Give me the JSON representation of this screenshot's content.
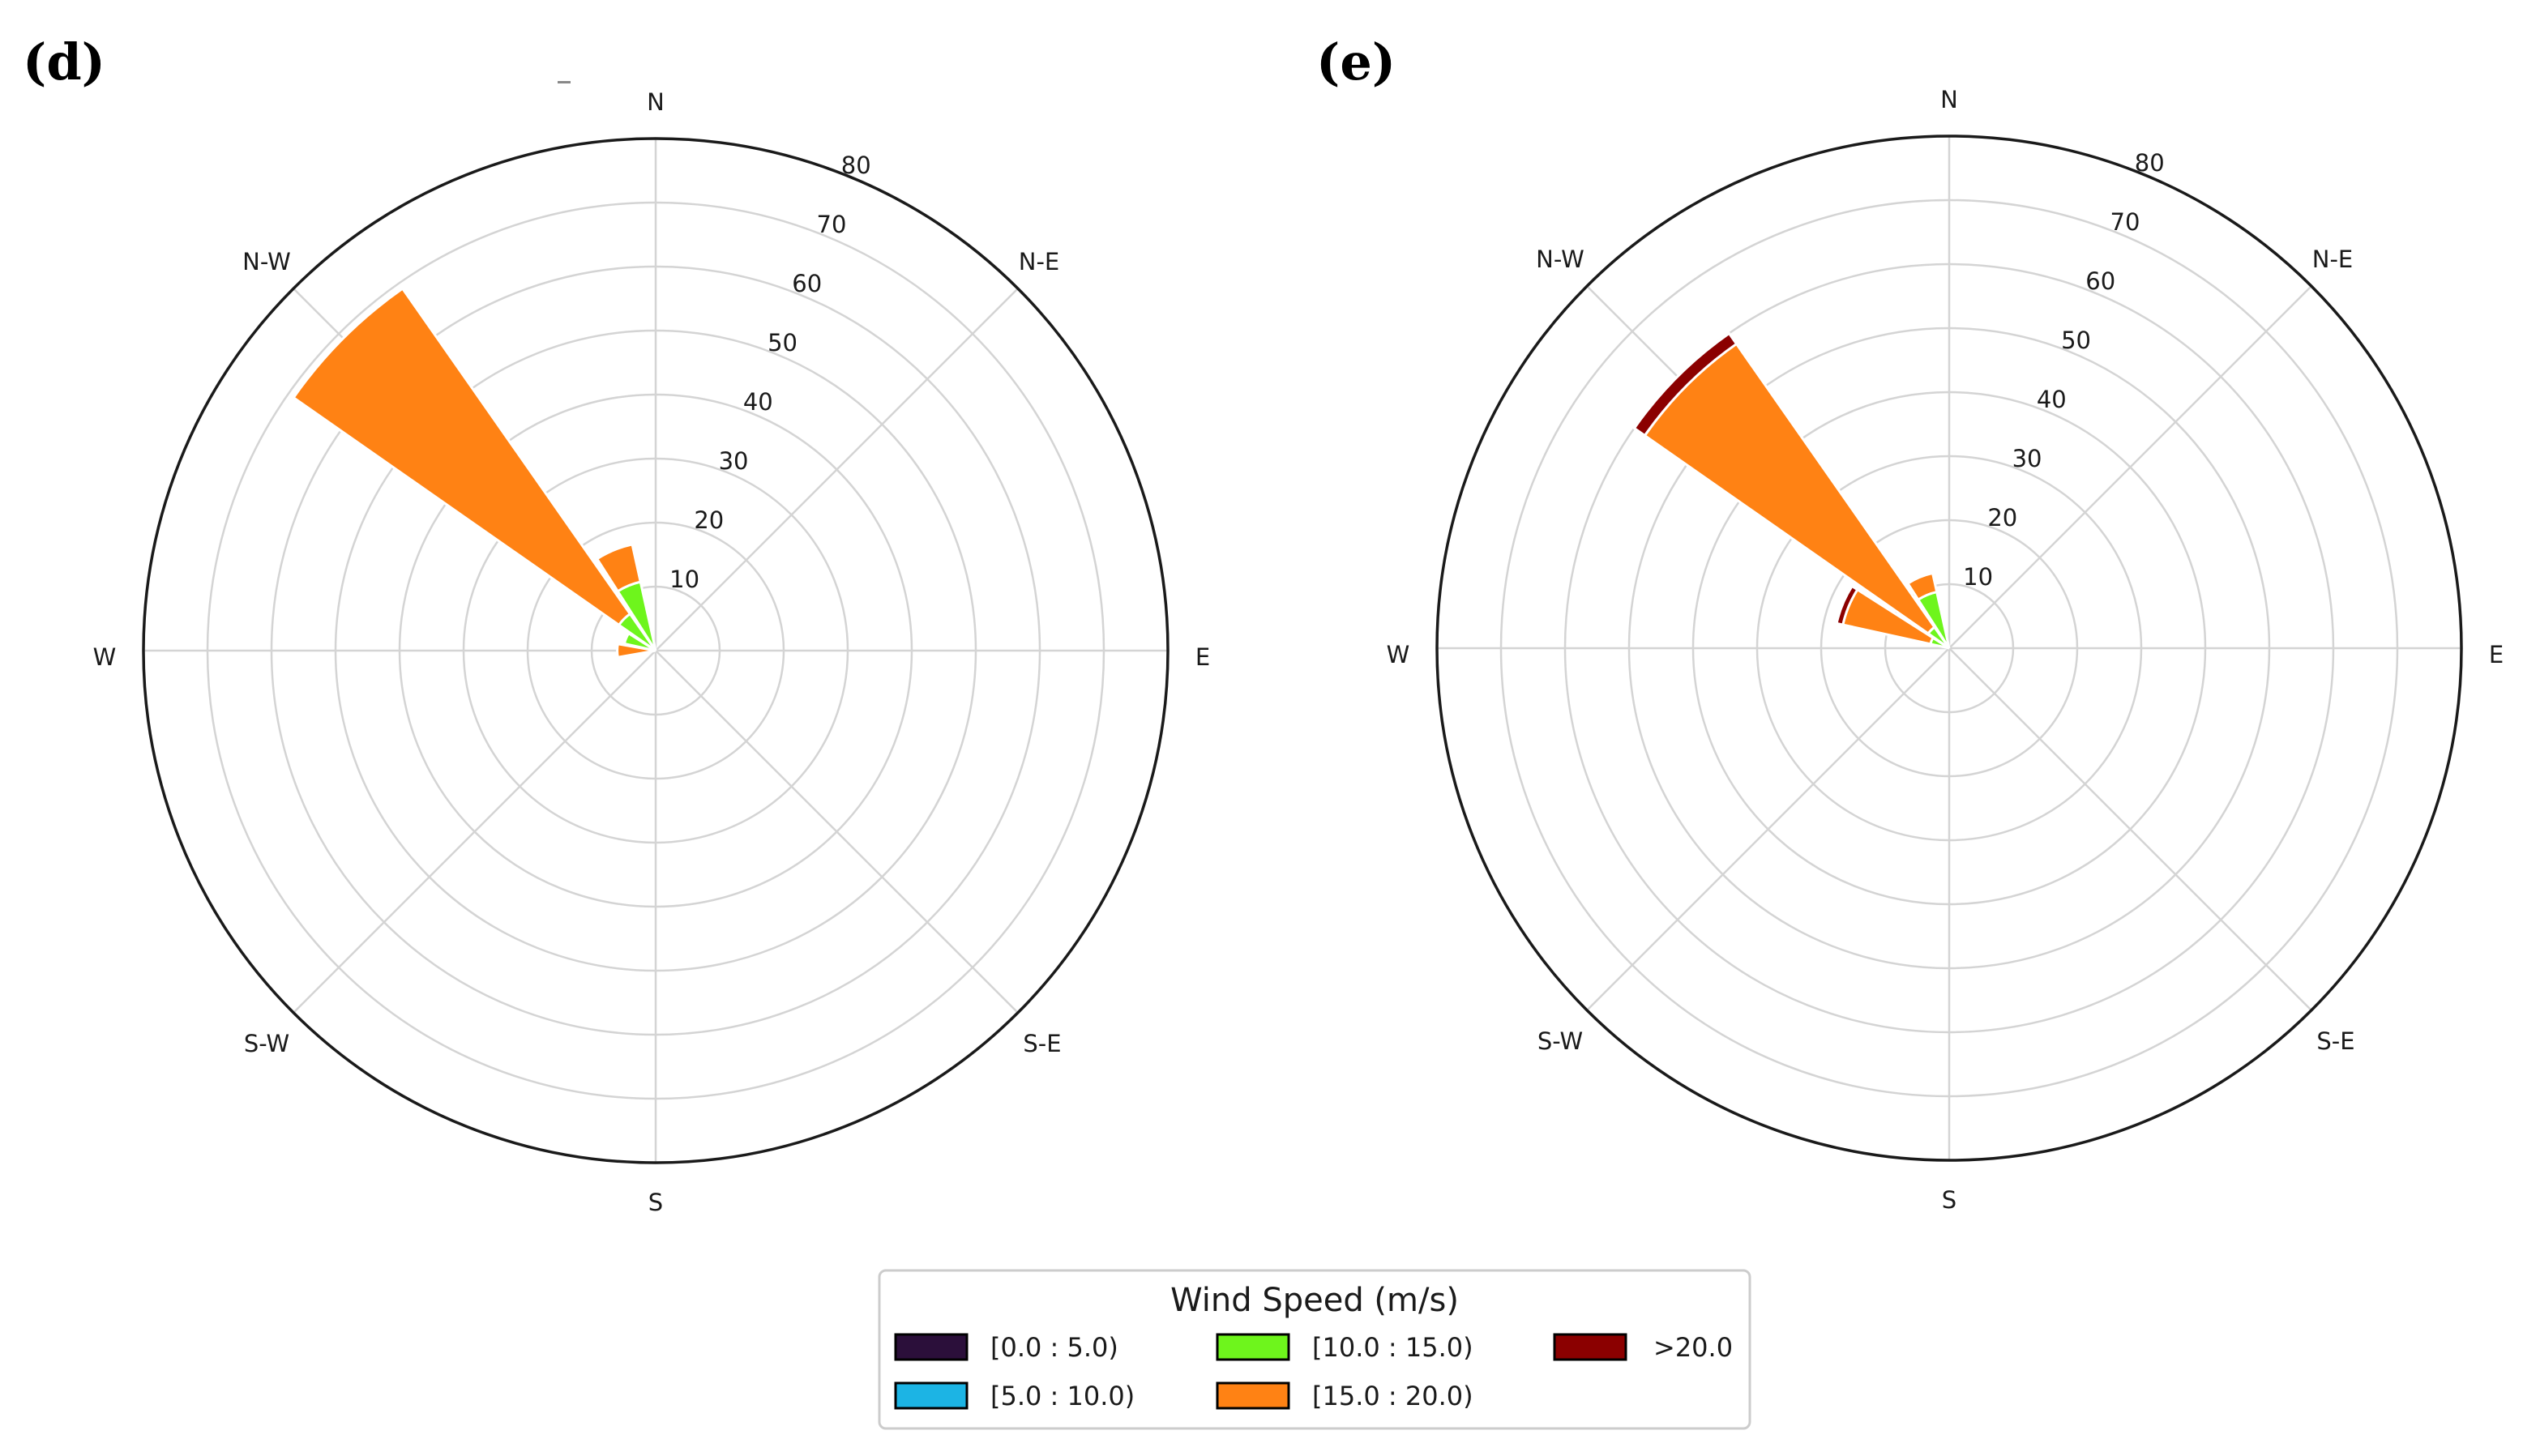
{
  "chart_data": [
    {
      "type": "windrose",
      "panel_label": "(d)",
      "directions": [
        "N",
        "N-E",
        "E",
        "S-E",
        "S",
        "S-W",
        "W",
        "N-W"
      ],
      "radial_ticks": [
        10,
        20,
        30,
        40,
        50,
        60,
        70,
        80
      ],
      "rmax": 80,
      "sector_width_deg": 22.5,
      "bins": [
        "[0.0 : 5.0)",
        "[5.0 : 10.0)",
        "[10.0 : 15.0)",
        "[15.0 : 20.0)",
        ">20.0"
      ],
      "sectors": [
        {
          "angle_deg": 315,
          "stack": [
            0,
            0,
            7,
            62,
            0
          ]
        },
        {
          "angle_deg": 337.5,
          "stack": [
            0,
            0,
            11,
            6,
            0
          ]
        },
        {
          "angle_deg": 292.5,
          "stack": [
            0,
            0,
            5,
            0,
            0
          ]
        },
        {
          "angle_deg": 270,
          "stack": [
            0,
            0,
            0,
            6,
            0
          ]
        }
      ]
    },
    {
      "type": "windrose",
      "panel_label": "(e)",
      "directions": [
        "N",
        "N-E",
        "E",
        "S-E",
        "S",
        "S-W",
        "W",
        "N-W"
      ],
      "radial_ticks": [
        10,
        20,
        30,
        40,
        50,
        60,
        70,
        80
      ],
      "rmax": 80,
      "sector_width_deg": 22.5,
      "bins": [
        "[0.0 : 5.0)",
        "[5.0 : 10.0)",
        "[10.0 : 15.0)",
        "[15.0 : 20.0)",
        ">20.0"
      ],
      "sectors": [
        {
          "angle_deg": 315,
          "stack": [
            0,
            0,
            4,
            54,
            2
          ]
        },
        {
          "angle_deg": 337.5,
          "stack": [
            0,
            0,
            9,
            3,
            0
          ]
        },
        {
          "angle_deg": 292.5,
          "stack": [
            0,
            0,
            3,
            14,
            1
          ]
        }
      ]
    }
  ],
  "legend": {
    "title": "Wind Speed (m/s)",
    "items": [
      {
        "label": "[0.0 : 5.0)",
        "color": "#2b0f3a"
      },
      {
        "label": "[5.0 : 10.0)",
        "color": "#1cb4e4"
      },
      {
        "label": "[10.0 : 15.0)",
        "color": "#6ef51c"
      },
      {
        "label": "[15.0 : 20.0)",
        "color": "#ff8214"
      },
      {
        "label": ">20.0",
        "color": "#8b0000"
      }
    ]
  },
  "colors": {
    "grid": "#d4d4d4",
    "frame": "#1a1a1a",
    "bar_edge": "#ffffff"
  }
}
